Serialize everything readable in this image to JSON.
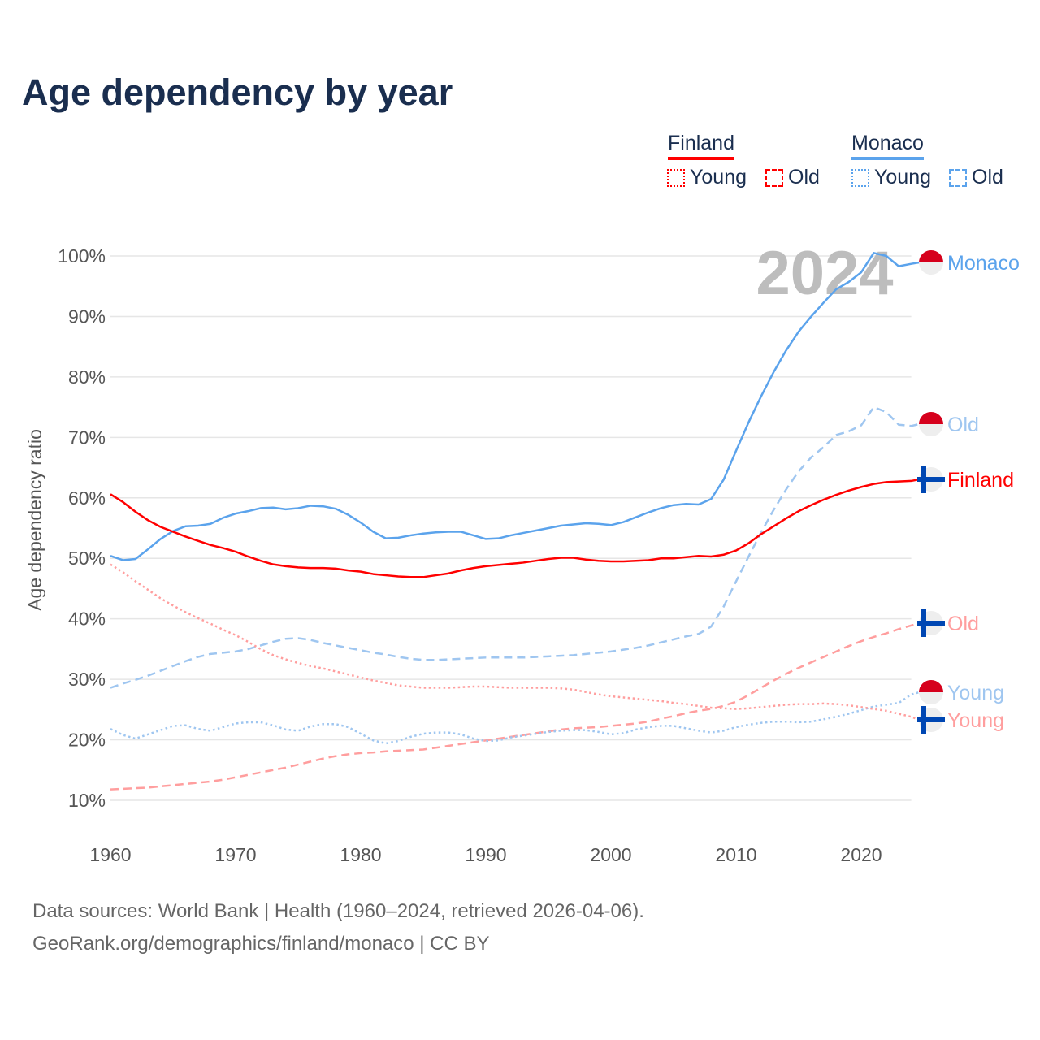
{
  "chart_data": {
    "type": "line",
    "title": "Age dependency by year",
    "xlabel": "",
    "ylabel": "Age dependency ratio",
    "xlim": [
      1960,
      2024
    ],
    "ylim": [
      5,
      100
    ],
    "x_ticks": [
      "1960",
      "1970",
      "1980",
      "1990",
      "2000",
      "2010",
      "2020"
    ],
    "y_ticks": [
      "10%",
      "20%",
      "30%",
      "40%",
      "50%",
      "60%",
      "70%",
      "80%",
      "90%",
      "100%"
    ],
    "year_watermark": "2024",
    "legend": {
      "countries": [
        {
          "name": "Finland",
          "color": "#ff0000"
        },
        {
          "name": "Monaco",
          "color": "#5ba3ec"
        }
      ],
      "items": [
        "Young",
        "Old"
      ],
      "placement": "top-right"
    },
    "series": [
      {
        "name": "Monaco",
        "label": "Monaco",
        "country": "Monaco",
        "style": "solid",
        "color": "#5ba3ec",
        "values": [
          50.4,
          49.7,
          49.9,
          51.5,
          53.2,
          54.5,
          55.3,
          55.4,
          55.7,
          56.7,
          57.4,
          57.8,
          58.3,
          58.4,
          58.1,
          58.3,
          58.7,
          58.6,
          58.2,
          57.2,
          55.9,
          54.4,
          53.3,
          53.4,
          53.8,
          54.1,
          54.3,
          54.4,
          54.4,
          53.8,
          53.2,
          53.3,
          53.8,
          54.2,
          54.6,
          55.0,
          55.4,
          55.6,
          55.8,
          55.7,
          55.5,
          56.0,
          56.8,
          57.6,
          58.3,
          58.8,
          59.0,
          58.9,
          59.8,
          63.0,
          67.8,
          72.5,
          76.8,
          80.8,
          84.4,
          87.5,
          90.0,
          92.3,
          94.5,
          95.7,
          97.3,
          100.5,
          100.0,
          98.3,
          98.7
        ]
      },
      {
        "name": "Monaco Old",
        "label": "Old",
        "country": "Monaco",
        "style": "dashed",
        "color": "#9fc6f0",
        "values": [
          28.6,
          29.3,
          29.9,
          30.6,
          31.4,
          32.2,
          33.0,
          33.7,
          34.2,
          34.4,
          34.6,
          35.0,
          35.6,
          36.2,
          36.7,
          36.8,
          36.5,
          36.0,
          35.6,
          35.2,
          34.8,
          34.4,
          34.1,
          33.7,
          33.4,
          33.2,
          33.2,
          33.3,
          33.4,
          33.5,
          33.6,
          33.6,
          33.6,
          33.6,
          33.7,
          33.8,
          33.9,
          34.0,
          34.2,
          34.4,
          34.6,
          34.9,
          35.2,
          35.6,
          36.1,
          36.6,
          37.1,
          37.5,
          38.7,
          42.0,
          46.2,
          50.3,
          54.3,
          58.0,
          61.4,
          64.4,
          66.7,
          68.4,
          70.4,
          71.0,
          72.0,
          75.0,
          74.2,
          72.1,
          71.9
        ]
      },
      {
        "name": "Finland",
        "label": "Finland",
        "country": "Finland",
        "style": "solid",
        "color": "#ff0000",
        "values": [
          60.6,
          59.3,
          57.7,
          56.3,
          55.2,
          54.4,
          53.6,
          52.9,
          52.2,
          51.7,
          51.1,
          50.3,
          49.6,
          49.0,
          48.7,
          48.5,
          48.4,
          48.4,
          48.3,
          48.0,
          47.8,
          47.4,
          47.2,
          47.0,
          46.9,
          46.9,
          47.2,
          47.5,
          48.0,
          48.4,
          48.7,
          48.9,
          49.1,
          49.3,
          49.6,
          49.9,
          50.1,
          50.1,
          49.8,
          49.6,
          49.5,
          49.5,
          49.6,
          49.7,
          50.0,
          50.0,
          50.2,
          50.4,
          50.3,
          50.6,
          51.3,
          52.5,
          54.0,
          55.3,
          56.6,
          57.8,
          58.8,
          59.7,
          60.5,
          61.2,
          61.8,
          62.3,
          62.6,
          62.7,
          62.8
        ]
      },
      {
        "name": "Finland Old",
        "label": "Old",
        "country": "Finland",
        "style": "dashed",
        "color": "#ff9e9e",
        "values": [
          11.8,
          11.9,
          12.0,
          12.1,
          12.3,
          12.5,
          12.7,
          12.9,
          13.1,
          13.4,
          13.8,
          14.2,
          14.6,
          15.0,
          15.4,
          15.9,
          16.4,
          16.9,
          17.3,
          17.6,
          17.8,
          17.9,
          18.1,
          18.2,
          18.3,
          18.4,
          18.7,
          19.0,
          19.3,
          19.6,
          19.9,
          20.2,
          20.5,
          20.8,
          21.1,
          21.4,
          21.7,
          21.9,
          22.0,
          22.1,
          22.3,
          22.5,
          22.7,
          23.0,
          23.5,
          23.9,
          24.4,
          24.8,
          25.1,
          25.6,
          26.3,
          27.4,
          28.6,
          29.8,
          30.9,
          31.9,
          32.8,
          33.7,
          34.6,
          35.5,
          36.3,
          37.0,
          37.6,
          38.3,
          38.9
        ]
      },
      {
        "name": "Monaco Young",
        "label": "Young",
        "country": "Monaco",
        "style": "dotted",
        "color": "#9fc6f0",
        "values": [
          21.8,
          20.8,
          20.2,
          20.9,
          21.6,
          22.3,
          22.4,
          21.8,
          21.5,
          22.1,
          22.7,
          22.9,
          22.9,
          22.4,
          21.7,
          21.5,
          22.2,
          22.6,
          22.6,
          22.1,
          21.0,
          19.9,
          19.4,
          19.8,
          20.5,
          21.0,
          21.2,
          21.2,
          20.9,
          20.2,
          19.8,
          19.9,
          20.4,
          20.7,
          21.0,
          21.3,
          21.5,
          21.6,
          21.6,
          21.3,
          20.9,
          21.1,
          21.7,
          22.1,
          22.3,
          22.3,
          21.9,
          21.5,
          21.2,
          21.5,
          22.1,
          22.5,
          22.8,
          23.0,
          23.0,
          22.9,
          23.0,
          23.4,
          23.8,
          24.3,
          24.9,
          25.5,
          25.8,
          26.1,
          27.5
        ]
      },
      {
        "name": "Finland Young",
        "label": "Young",
        "country": "Finland",
        "style": "dotted",
        "color": "#ff9e9e",
        "values": [
          49.0,
          47.7,
          46.2,
          44.8,
          43.4,
          42.2,
          41.1,
          40.1,
          39.2,
          38.2,
          37.3,
          36.2,
          35.0,
          34.0,
          33.3,
          32.7,
          32.2,
          31.8,
          31.3,
          30.8,
          30.3,
          29.8,
          29.4,
          29.0,
          28.8,
          28.6,
          28.6,
          28.6,
          28.7,
          28.8,
          28.8,
          28.7,
          28.6,
          28.6,
          28.6,
          28.6,
          28.5,
          28.3,
          27.9,
          27.5,
          27.2,
          27.0,
          26.8,
          26.6,
          26.4,
          26.1,
          25.9,
          25.6,
          25.3,
          25.2,
          25.1,
          25.2,
          25.4,
          25.6,
          25.8,
          25.9,
          25.9,
          26.0,
          25.9,
          25.7,
          25.4,
          25.1,
          24.8,
          24.3,
          23.8
        ]
      }
    ]
  },
  "footer": {
    "line1": "Data sources: World Bank | Health (1960–2024, retrieved 2026-04-06).",
    "line2": "GeoRank.org/demographics/finland/monaco | CC BY"
  }
}
